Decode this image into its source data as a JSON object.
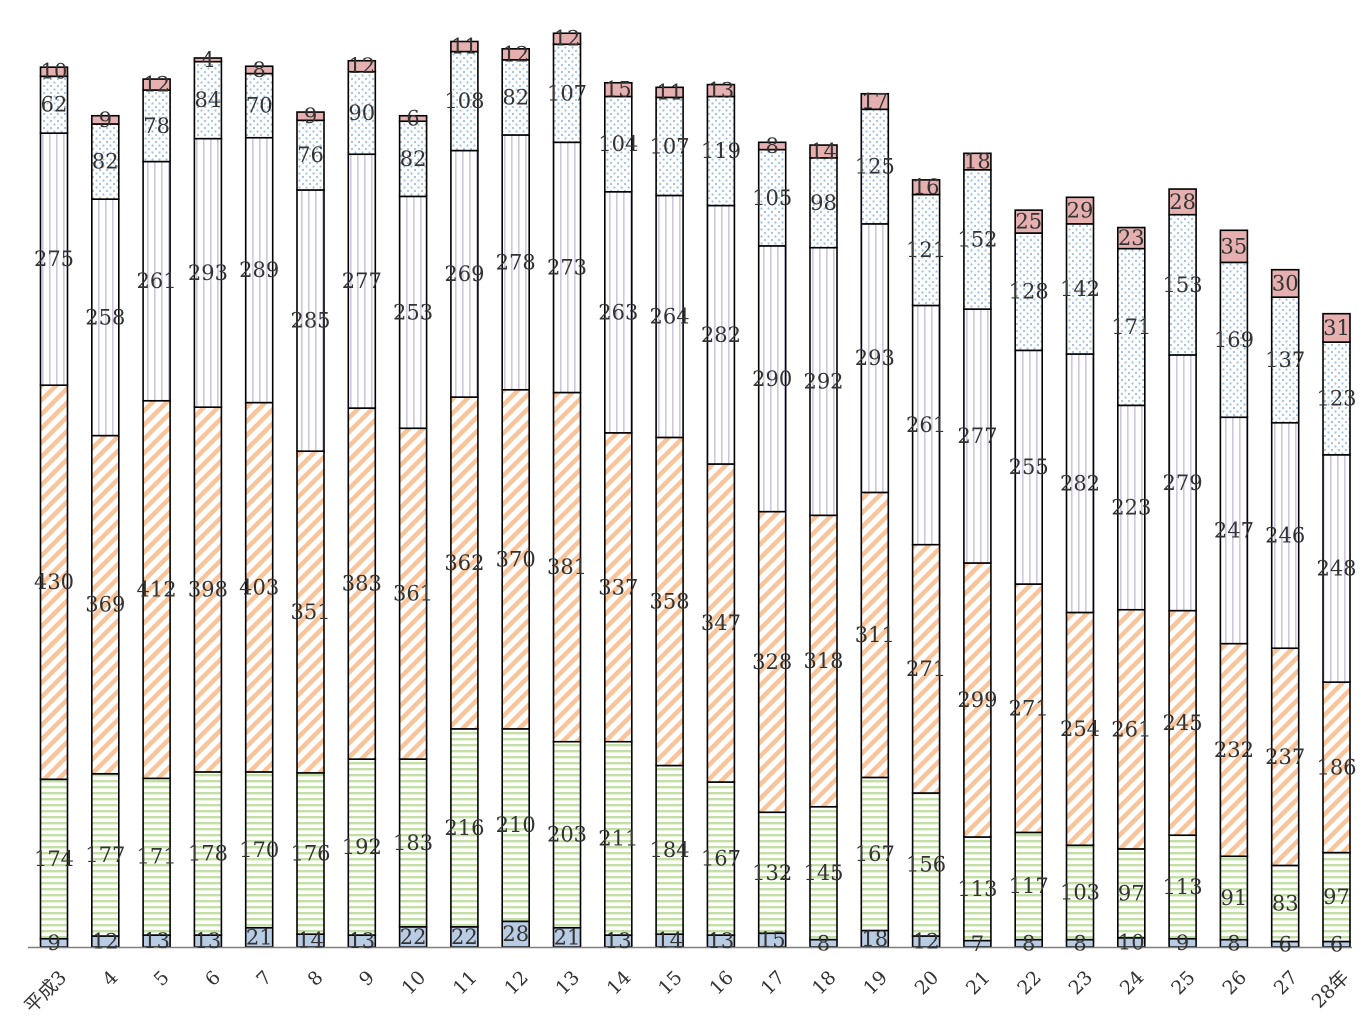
{
  "chart_data": {
    "type": "bar",
    "stacked": true,
    "categories": [
      "平成3",
      "4",
      "5",
      "6",
      "7",
      "8",
      "9",
      "10",
      "11",
      "12",
      "13",
      "14",
      "15",
      "16",
      "17",
      "18",
      "19",
      "20",
      "21",
      "22",
      "23",
      "24",
      "25",
      "26",
      "27",
      "28年"
    ],
    "series": [
      {
        "values": [
          9,
          12,
          13,
          13,
          21,
          14,
          13,
          22,
          22,
          28,
          21,
          13,
          14,
          13,
          15,
          8,
          18,
          12,
          7,
          8,
          8,
          10,
          9,
          8,
          6,
          6
        ],
        "fill": "#b8cce4",
        "pattern": "solid"
      },
      {
        "values": [
          174,
          177,
          171,
          178,
          170,
          176,
          192,
          183,
          216,
          210,
          203,
          211,
          184,
          167,
          132,
          145,
          167,
          156,
          113,
          117,
          103,
          97,
          113,
          91,
          83,
          97
        ],
        "fill": "#c4dfa6",
        "pattern": "horizontal-stripes"
      },
      {
        "values": [
          430,
          369,
          412,
          398,
          403,
          351,
          383,
          361,
          362,
          370,
          381,
          337,
          358,
          347,
          328,
          318,
          311,
          271,
          299,
          271,
          254,
          261,
          245,
          232,
          237,
          186
        ],
        "fill": "#f9c49a",
        "pattern": "diagonal-stripes"
      },
      {
        "values": [
          275,
          258,
          261,
          293,
          289,
          285,
          277,
          253,
          269,
          278,
          273,
          263,
          264,
          282,
          290,
          292,
          293,
          261,
          277,
          255,
          282,
          223,
          279,
          247,
          246,
          248
        ],
        "fill": "#cfc6e0",
        "pattern": "vertical-stripes"
      },
      {
        "values": [
          62,
          82,
          78,
          84,
          70,
          76,
          90,
          82,
          108,
          82,
          107,
          104,
          107,
          119,
          105,
          98,
          125,
          121,
          152,
          128,
          142,
          171,
          153,
          169,
          137,
          123
        ],
        "fill": "#b9d3ea",
        "pattern": "dots"
      },
      {
        "values": [
          10,
          9,
          12,
          4,
          8,
          9,
          12,
          6,
          11,
          12,
          12,
          15,
          11,
          13,
          8,
          14,
          17,
          16,
          18,
          25,
          29,
          23,
          28,
          35,
          30,
          31
        ],
        "fill": "#e6b0b0",
        "pattern": "solid"
      }
    ],
    "grid": false,
    "legend": "none"
  }
}
